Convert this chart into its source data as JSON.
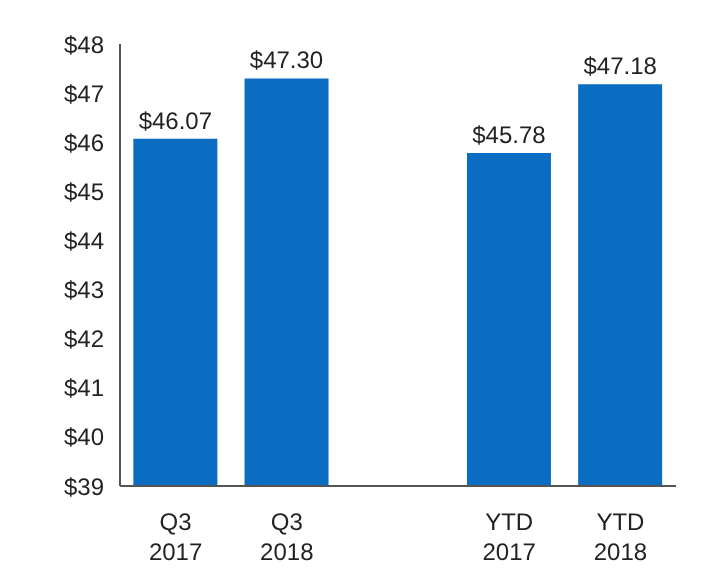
{
  "chart_data": {
    "type": "bar",
    "categories": [
      "Q3 2017",
      "Q3 2018",
      null,
      "YTD 2017",
      "YTD 2018"
    ],
    "values": [
      46.07,
      47.3,
      null,
      45.78,
      47.18
    ],
    "value_labels": [
      "$46.07",
      "$47.30",
      null,
      "$45.78",
      "$47.18"
    ],
    "color": "#0a6dc2",
    "ylim": [
      39,
      48
    ],
    "yticks": [
      {
        "value": 39,
        "label": "$39"
      },
      {
        "value": 40,
        "label": "$40"
      },
      {
        "value": 41,
        "label": "$41"
      },
      {
        "value": 42,
        "label": "$42"
      },
      {
        "value": 43,
        "label": "$43"
      },
      {
        "value": 44,
        "label": "$44"
      },
      {
        "value": 45,
        "label": "$45"
      },
      {
        "value": 46,
        "label": "$46"
      },
      {
        "value": 47,
        "label": "$47"
      },
      {
        "value": 48,
        "label": "$48"
      }
    ],
    "grid": false
  }
}
